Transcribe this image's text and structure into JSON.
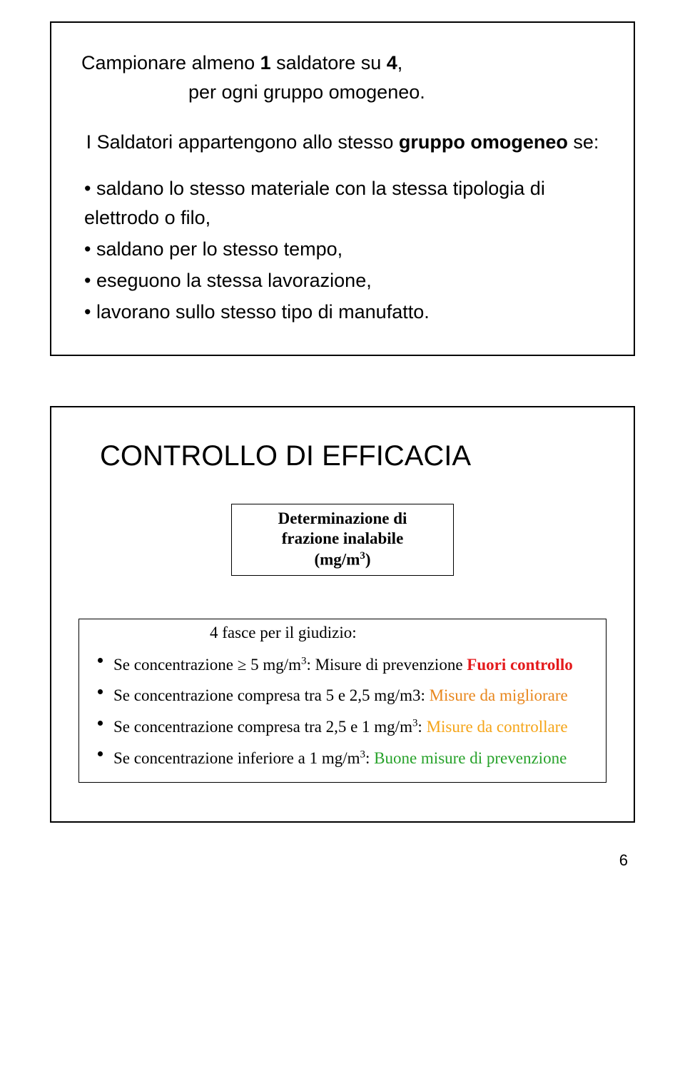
{
  "slide1": {
    "title_pre": "Campionare almeno ",
    "title_bold1": "1",
    "title_mid": " saldatore su ",
    "title_bold2": "4",
    "title_post": ",",
    "title_line2": "per ogni gruppo omogeneo.",
    "sub_pre": "I Saldatori appartengono allo stesso ",
    "sub_bold": "gruppo omogeneo",
    "sub_post": " se:",
    "bullets": [
      "saldano lo stesso materiale con la stessa tipologia di elettrodo o filo,",
      "saldano per lo stesso tempo,",
      "eseguono la stessa lavorazione,",
      "lavorano sullo stesso tipo di manufatto."
    ]
  },
  "slide2": {
    "title": "CONTROLLO DI EFFICACIA",
    "box_line1": "Determinazione di",
    "box_line2": "frazione inalabile",
    "box_line3_pre": "(mg/m",
    "box_line3_sup": "3",
    "box_line3_post": ")",
    "fasce_head": "4 fasce per il giudizio:",
    "rows": [
      {
        "pre": "Se concentrazione ≥ 5 mg/m",
        "sup": "3",
        "mid": ": Misure di prevenzione ",
        "em": "Fuori controllo",
        "cls": "red"
      },
      {
        "pre": "Se concentrazione compresa tra 5 e 2,5 mg/m3: ",
        "sup": "",
        "mid": "",
        "em": "Misure da migliorare",
        "cls": "orange-dk"
      },
      {
        "pre": "Se concentrazione compresa tra 2,5 e 1 mg/m",
        "sup": "3",
        "mid": ": ",
        "em": "Misure da controllare",
        "cls": "orange-md"
      },
      {
        "pre": "Se concentrazione inferiore a 1 mg/m",
        "sup": "3",
        "mid": ": ",
        "em": "Buone misure di prevenzione",
        "cls": "green"
      }
    ]
  },
  "page_number": "6",
  "colors": {
    "red": "#e41a1c",
    "orange_dk": "#e8861c",
    "orange_md": "#f5a519",
    "green": "#27a22a",
    "text": "#000000",
    "bg": "#ffffff"
  }
}
